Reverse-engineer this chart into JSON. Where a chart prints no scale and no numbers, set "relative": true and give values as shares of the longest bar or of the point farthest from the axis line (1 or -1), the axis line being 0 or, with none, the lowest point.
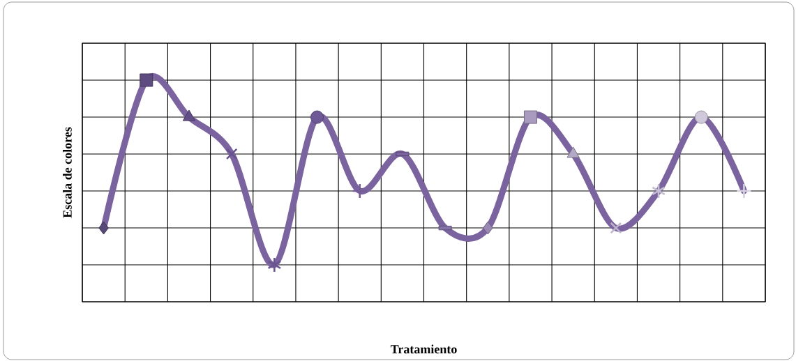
{
  "chart_data": {
    "type": "line",
    "xlabel": "Tratamiento",
    "ylabel": "Escala de colores",
    "relative": true,
    "grid": true,
    "categories": [
      null,
      null,
      null,
      null,
      null,
      null,
      null,
      null,
      null,
      null,
      null,
      null,
      null,
      null,
      null,
      null
    ],
    "series": [
      {
        "color": "#7a639e",
        "values": [
          0.333,
          1,
          0.833,
          0.667,
          0.167,
          0.833,
          0.5,
          0.667,
          0.333,
          0.333,
          0.833,
          0.667,
          0.333,
          0.5,
          0.833,
          0.5
        ],
        "colors": [
          "#584878",
          "#5e4b80",
          "#634f87",
          "#67528c",
          "#6a5590",
          "#6e5895",
          "#735c98",
          "#7a639e",
          "#8572a8",
          "#9a88b4",
          "#a99abf",
          "#b3a8c6",
          "#bdb4cc",
          "#c5bdd2",
          "#cfc9db",
          "#d6d2e0"
        ],
        "marker": [
          "diamond",
          "square",
          "triangle",
          "cross",
          "star",
          "circle",
          "plus",
          "dash",
          "dash",
          "diamond",
          "square",
          "triangle",
          "cross",
          "star",
          "circle",
          "plus"
        ]
      }
    ]
  }
}
